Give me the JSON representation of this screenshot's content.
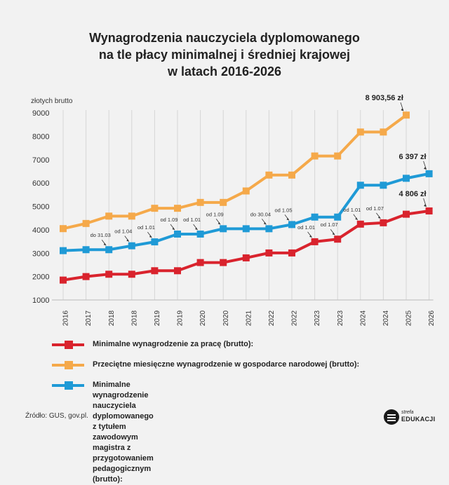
{
  "title": {
    "line1": "Wynagrodzenia nauczyciela dyplomowanego",
    "line2": "na tle płacy minimalnej i średniej krajowej",
    "line3": "w latach 2016-2026"
  },
  "chart_data": {
    "type": "line",
    "ylabel": "złotych brutto",
    "ylim": [
      1000,
      9000
    ],
    "yticks": [
      1000,
      2000,
      3000,
      4000,
      5000,
      6000,
      7000,
      8000,
      9000
    ],
    "categories": [
      "2016",
      "2017",
      "2018",
      "2018",
      "2019",
      "2019",
      "2020",
      "2020",
      "2021",
      "2022",
      "2022",
      "2023",
      "2023",
      "2024",
      "2024",
      "2025",
      "2026"
    ],
    "grid": "vertical",
    "series": [
      {
        "name": "Minimalne wynagrodzenie za pracę (brutto):",
        "color": "#d9232d",
        "values": [
          1850,
          2000,
          2100,
          2100,
          2250,
          2250,
          2600,
          2600,
          2800,
          3010,
          3010,
          3490,
          3600,
          4242,
          4300,
          4666,
          4806
        ]
      },
      {
        "name": "Przeciętne miesięczne wynagrodzenie w gospodarce narodowej (brutto):",
        "color": "#f5a94a",
        "values": [
          4050,
          4270,
          4585,
          4585,
          4920,
          4920,
          5170,
          5170,
          5660,
          6340,
          6340,
          7155,
          7155,
          8180,
          8180,
          8903.56,
          null
        ]
      },
      {
        "name": "Minimalne wynagrodzenie nauczyciela dyplomowanego\nz tytułem zawodowym magistra z przygotowaniem pedagogicznym (brutto):",
        "color": "#1f9ad6",
        "values": [
          3109,
          3150,
          3150,
          3317,
          3484,
          3817,
          3817,
          4046,
          4046,
          4046,
          4224,
          4544,
          4544,
          5905,
          5905,
          6202,
          6397
        ]
      }
    ],
    "value_labels": [
      {
        "series": 1,
        "index": 15,
        "text": "8 903,56 zł"
      },
      {
        "series": 2,
        "index": 16,
        "text": "6 397 zł"
      },
      {
        "series": 0,
        "index": 16,
        "text": "4 806 zł"
      }
    ],
    "annotations": [
      {
        "index": 2,
        "series": 2,
        "text": "do 31.03",
        "side": "left"
      },
      {
        "index": 3,
        "series": 2,
        "text": "od 1.04",
        "side": "left"
      },
      {
        "index": 4,
        "series": 2,
        "text": "od 1.01",
        "side": "left"
      },
      {
        "index": 5,
        "series": 2,
        "text": "od 1.09",
        "side": "left"
      },
      {
        "index": 6,
        "series": 2,
        "text": "od 1.01",
        "side": "left"
      },
      {
        "index": 7,
        "series": 2,
        "text": "od 1.09",
        "side": "left"
      },
      {
        "index": 9,
        "series": 2,
        "text": "do 30.04",
        "side": "left"
      },
      {
        "index": 10,
        "series": 2,
        "text": "od 1.05",
        "side": "left"
      },
      {
        "index": 11,
        "series": 0,
        "text": "od 1.01",
        "side": "left"
      },
      {
        "index": 12,
        "series": 0,
        "text": "od 1.07",
        "side": "left"
      },
      {
        "index": 13,
        "series": 0,
        "text": "od 1.01",
        "side": "left"
      },
      {
        "index": 14,
        "series": 0,
        "text": "od 1.07",
        "side": "left"
      }
    ]
  },
  "legend_order": [
    0,
    1,
    2
  ],
  "source": "Źródło: GUS, gov.pl.",
  "logo": {
    "small": "strefa",
    "big": "EDUKACJI"
  }
}
